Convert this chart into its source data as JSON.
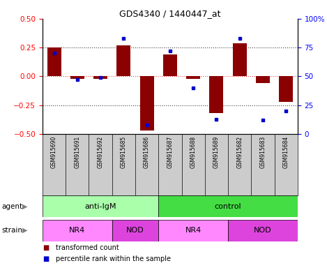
{
  "title": "GDS4340 / 1440447_at",
  "samples": [
    "GSM915690",
    "GSM915691",
    "GSM915692",
    "GSM915685",
    "GSM915686",
    "GSM915687",
    "GSM915688",
    "GSM915689",
    "GSM915682",
    "GSM915683",
    "GSM915684"
  ],
  "transformed_count": [
    0.25,
    -0.02,
    -0.02,
    0.27,
    -0.47,
    0.19,
    -0.02,
    -0.32,
    0.29,
    -0.06,
    -0.22
  ],
  "percentile_rank": [
    70,
    47,
    49,
    83,
    8,
    72,
    40,
    13,
    83,
    12,
    20
  ],
  "bar_color": "#8B0000",
  "dot_color": "#0000CC",
  "ylim_left": [
    -0.5,
    0.5
  ],
  "ylim_right": [
    0,
    100
  ],
  "yticks_left": [
    -0.5,
    -0.25,
    0,
    0.25,
    0.5
  ],
  "yticks_right": [
    0,
    25,
    50,
    75,
    100
  ],
  "ytick_labels_right": [
    "0",
    "25",
    "50",
    "75",
    "100%"
  ],
  "agent_groups": [
    {
      "label": "anti-IgM",
      "start": 0,
      "end": 5,
      "color": "#AAFFAA"
    },
    {
      "label": "control",
      "start": 5,
      "end": 11,
      "color": "#44DD44"
    }
  ],
  "strain_groups": [
    {
      "label": "NR4",
      "start": 0,
      "end": 3,
      "color": "#FF88FF"
    },
    {
      "label": "NOD",
      "start": 3,
      "end": 5,
      "color": "#DD44DD"
    },
    {
      "label": "NR4",
      "start": 5,
      "end": 8,
      "color": "#FF88FF"
    },
    {
      "label": "NOD",
      "start": 8,
      "end": 11,
      "color": "#DD44DD"
    }
  ],
  "legend_items": [
    {
      "label": "transformed count",
      "color": "#8B0000"
    },
    {
      "label": "percentile rank within the sample",
      "color": "#0000CC"
    }
  ],
  "hline_color": "#FF4444",
  "dotted_color": "#444444",
  "agent_label": "agent",
  "strain_label": "strain",
  "bar_width": 0.6,
  "plot_bg": "#ffffff",
  "tick_area_bg": "#cccccc"
}
